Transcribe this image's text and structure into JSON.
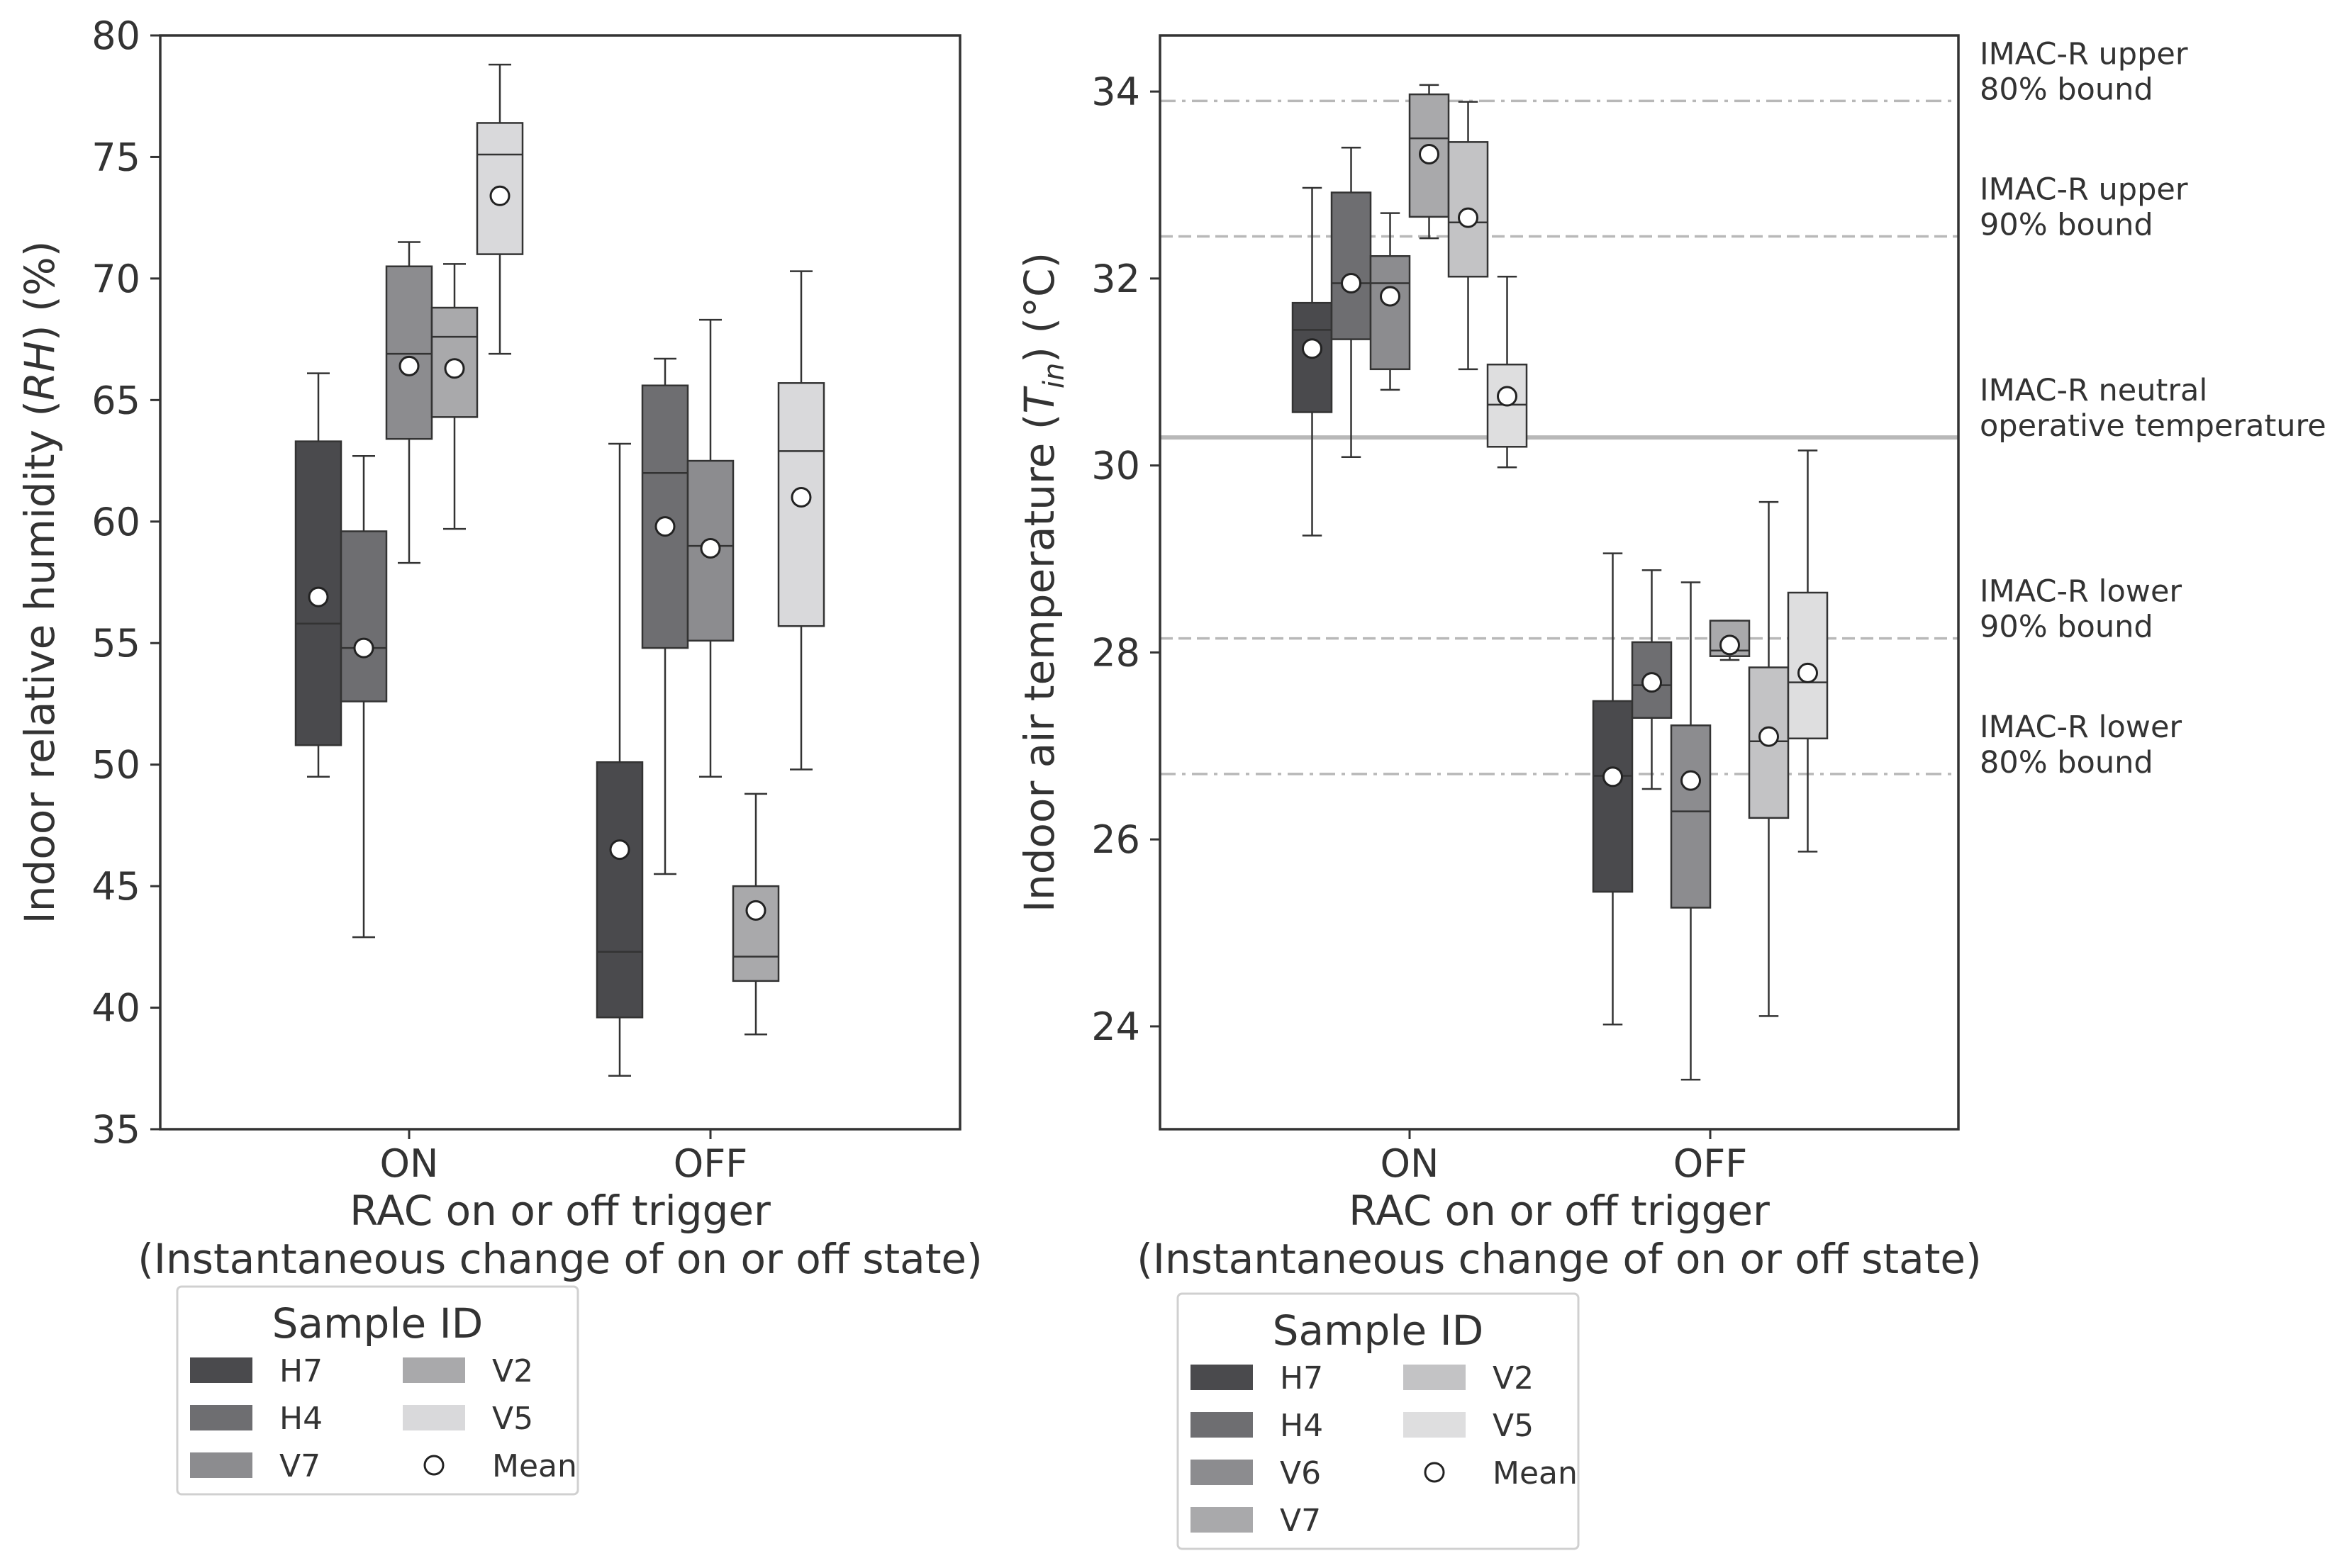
{
  "chart_data": [
    {
      "type": "box",
      "ylabel_prefix": "Indoor relative humidity (",
      "ylabel_symbol": "RH",
      "ylabel_suffix": ") (%)",
      "xlabel": "RAC on or off trigger",
      "xlabel2": "(Instantaneous change of on or off state)",
      "ylim": [
        35,
        80
      ],
      "yticks": [
        35,
        40,
        45,
        50,
        55,
        60,
        65,
        70,
        75,
        80
      ],
      "categories": [
        "ON",
        "OFF"
      ],
      "series": [
        {
          "name": "H7",
          "color": "#4a4a4d",
          "ON": {
            "min": 49.5,
            "q1": 50.8,
            "median": 55.8,
            "q3": 63.3,
            "max": 66.1,
            "mean": 56.9
          },
          "OFF": {
            "min": 37.2,
            "q1": 39.6,
            "median": 42.3,
            "q3": 50.1,
            "max": 63.2,
            "mean": 46.5
          }
        },
        {
          "name": "H4",
          "color": "#6e6e71",
          "ON": {
            "min": 42.9,
            "q1": 52.6,
            "median": 54.8,
            "q3": 59.6,
            "max": 62.7,
            "mean": 54.8
          },
          "OFF": {
            "min": 45.5,
            "q1": 54.8,
            "median": 62.0,
            "q3": 65.6,
            "max": 66.7,
            "mean": 59.8
          }
        },
        {
          "name": "V7",
          "color": "#8c8c8f",
          "ON": {
            "min": 58.3,
            "q1": 63.4,
            "median": 66.9,
            "q3": 70.5,
            "max": 71.5,
            "mean": 66.4
          },
          "OFF": {
            "min": 49.5,
            "q1": 55.1,
            "median": 59.0,
            "q3": 62.5,
            "max": 68.3,
            "mean": 58.9
          }
        },
        {
          "name": "V2",
          "color": "#a9a9ab",
          "ON": {
            "min": 59.7,
            "q1": 64.3,
            "median": 67.6,
            "q3": 68.8,
            "max": 70.6,
            "mean": 66.3
          },
          "OFF": {
            "min": 38.9,
            "q1": 41.1,
            "median": 42.1,
            "q3": 45.0,
            "max": 48.8,
            "mean": 44.0
          }
        },
        {
          "name": "V5",
          "color": "#d9d9db",
          "ON": {
            "min": 66.9,
            "q1": 71.0,
            "median": 75.1,
            "q3": 76.4,
            "max": 78.8,
            "mean": 73.4
          },
          "OFF": {
            "min": 49.8,
            "q1": 55.7,
            "median": 62.9,
            "q3": 65.7,
            "max": 70.3,
            "mean": 61.0
          }
        }
      ],
      "legend": {
        "title": "Sample ID",
        "entries": [
          "H7",
          "H4",
          "V7",
          "V2",
          "V5",
          "Mean"
        ],
        "position": "below-left"
      }
    },
    {
      "type": "box",
      "ylabel_prefix": "Indoor air temperature (",
      "ylabel_symbol": "T",
      "ylabel_sub": "in",
      "ylabel_suffix": ") (°C)",
      "xlabel": "RAC on or off trigger",
      "xlabel2": "(Instantaneous change of on or off state)",
      "ylim": [
        22.9,
        34.6
      ],
      "yticks": [
        24,
        26,
        28,
        30,
        32,
        34
      ],
      "categories": [
        "ON",
        "OFF"
      ],
      "series": [
        {
          "name": "H7",
          "color": "#4a4a4d",
          "ON": {
            "min": 29.25,
            "q1": 30.57,
            "median": 31.45,
            "q3": 31.74,
            "max": 32.97,
            "mean": 31.25
          },
          "OFF": {
            "min": 24.02,
            "q1": 25.44,
            "median": 26.68,
            "q3": 27.48,
            "max": 29.06,
            "mean": 26.67
          }
        },
        {
          "name": "H4",
          "color": "#6e6e71",
          "ON": {
            "min": 30.09,
            "q1": 31.35,
            "median": 31.95,
            "q3": 32.92,
            "max": 33.4,
            "mean": 31.95
          },
          "OFF": {
            "min": 26.54,
            "q1": 27.3,
            "median": 27.65,
            "q3": 28.11,
            "max": 28.88,
            "mean": 27.68
          }
        },
        {
          "name": "V6",
          "color": "#8c8c8f",
          "ON": {
            "min": 30.81,
            "q1": 31.03,
            "median": 31.95,
            "q3": 32.24,
            "max": 32.7,
            "mean": 31.81
          },
          "OFF": {
            "min": 23.43,
            "q1": 25.27,
            "median": 26.3,
            "q3": 27.22,
            "max": 28.75,
            "mean": 26.63
          }
        },
        {
          "name": "V7",
          "color": "#a9a9ab",
          "ON": {
            "min": 32.43,
            "q1": 32.66,
            "median": 33.5,
            "q3": 33.97,
            "max": 34.07,
            "mean": 33.33
          },
          "OFF": {
            "min": 27.92,
            "q1": 27.96,
            "median": 28.02,
            "q3": 28.34,
            "max": 28.34,
            "mean": 28.08
          }
        },
        {
          "name": "V2",
          "color": "#c3c3c5",
          "ON": {
            "min": 31.03,
            "q1": 32.02,
            "median": 32.6,
            "q3": 33.46,
            "max": 33.89,
            "mean": 32.65
          },
          "OFF": {
            "min": 24.11,
            "q1": 26.23,
            "median": 27.05,
            "q3": 27.84,
            "max": 29.61,
            "mean": 27.1
          }
        },
        {
          "name": "V5",
          "color": "#dededf",
          "ON": {
            "min": 29.98,
            "q1": 30.2,
            "median": 30.65,
            "q3": 31.08,
            "max": 32.02,
            "mean": 30.74
          },
          "OFF": {
            "min": 25.87,
            "q1": 27.08,
            "median": 27.68,
            "q3": 28.64,
            "max": 30.16,
            "mean": 27.78
          }
        }
      ],
      "reference_lines": [
        {
          "value": 33.9,
          "style": "dashdot",
          "label1": "IMAC-R upper",
          "label2": "80% bound"
        },
        {
          "value": 32.45,
          "style": "dashed",
          "label1": "IMAC-R upper",
          "label2": "90% bound"
        },
        {
          "value": 30.3,
          "style": "solid",
          "label1": "IMAC-R neutral",
          "label2": "operative temperature"
        },
        {
          "value": 28.15,
          "style": "dashed",
          "label1": "IMAC-R lower",
          "label2": "90% bound"
        },
        {
          "value": 26.7,
          "style": "dashdot",
          "label1": "IMAC-R lower",
          "label2": "80% bound"
        }
      ],
      "legend": {
        "title": "Sample ID",
        "entries": [
          "H7",
          "H4",
          "V6",
          "V7",
          "V2",
          "V5",
          "Mean"
        ],
        "position": "below-left"
      }
    }
  ]
}
